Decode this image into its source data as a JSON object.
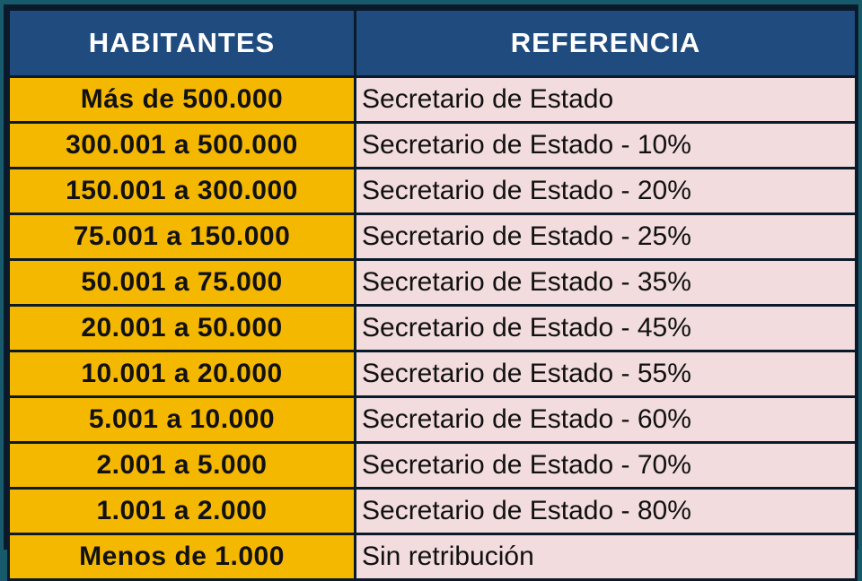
{
  "header": {
    "col1": "HABITANTES",
    "col2": "REFERENCIA"
  },
  "rows": [
    {
      "habitantes": "Más de 500.000",
      "referencia": "Secretario de Estado"
    },
    {
      "habitantes": "300.001 a 500.000",
      "referencia": "Secretario de Estado - 10%"
    },
    {
      "habitantes": "150.001 a 300.000",
      "referencia": "Secretario de Estado - 20%"
    },
    {
      "habitantes": "75.001 a 150.000",
      "referencia": "Secretario de Estado - 25%"
    },
    {
      "habitantes": "50.001 a 75.000",
      "referencia": "Secretario de Estado - 35%"
    },
    {
      "habitantes": "20.001 a 50.000",
      "referencia": "Secretario de Estado - 45%"
    },
    {
      "habitantes": "10.001 a 20.000",
      "referencia": "Secretario de Estado - 55%"
    },
    {
      "habitantes": "5.001 a 10.000",
      "referencia": "Secretario de Estado - 60%"
    },
    {
      "habitantes": "2.001 a 5.000",
      "referencia": "Secretario de Estado - 70%"
    },
    {
      "habitantes": "1.001 a 2.000",
      "referencia": "Secretario de Estado - 80%"
    },
    {
      "habitantes": "Menos de 1.000",
      "referencia": "Sin retribución"
    }
  ],
  "colors": {
    "header_bg": "#1f4b7f",
    "habitantes_bg": "#f5b800",
    "referencia_bg": "#f2dcdd",
    "border": "#0b1a2a",
    "page_bg": "#175a6b"
  }
}
